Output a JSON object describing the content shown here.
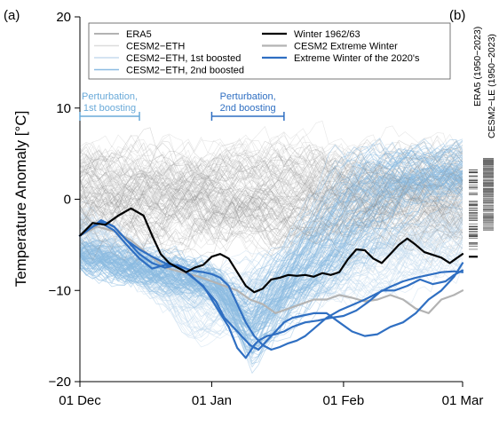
{
  "chart_data": {
    "type": "line",
    "panel_labels": [
      "(a)",
      "(b)"
    ],
    "ylabel": "Temperature Anomaly [°C]",
    "ylim": [
      -20,
      20
    ],
    "yticks": [
      -20,
      -10,
      0,
      10,
      20
    ],
    "x_range_days": [
      0,
      90
    ],
    "xticks": [
      {
        "day": 0,
        "label": "01 Dec"
      },
      {
        "day": 31,
        "label": "01 Jan"
      },
      {
        "day": 62,
        "label": "01 Feb"
      },
      {
        "day": 90,
        "label": "01 Mar"
      }
    ],
    "legend": [
      {
        "name": "ERA5",
        "color": "#9a9a9a"
      },
      {
        "name": "CESM2−ETH",
        "color": "#dddddd"
      },
      {
        "name": "CESM2−ETH, 1st boosted",
        "color": "#c6dcee"
      },
      {
        "name": "CESM2−ETH, 2nd boosted",
        "color": "#8cbbe2"
      },
      {
        "name": "Winter 1962/63",
        "color": "#000000"
      },
      {
        "name": "CESM2 Extreme Winter",
        "color": "#b3b3b3"
      },
      {
        "name": "Extreme Winter of the 2020's",
        "color": "#2f6fc2"
      }
    ],
    "annotations": [
      {
        "text_lines": [
          "Perturbation,",
          "1st boosting"
        ],
        "day_start": 0,
        "day_end": 14,
        "color": "#6aaad9"
      },
      {
        "text_lines": [
          "Perturbation,",
          "2nd boosting"
        ],
        "day_start": 31,
        "day_end": 48,
        "color": "#2f6fc2"
      }
    ],
    "side_panel_labels": [
      "ERA5 (1950−2023)",
      "CESM2−LE (1950−2023)"
    ],
    "side_panel_marker_value": -6.3,
    "series": [
      {
        "name": "Winter 1962/63",
        "color": "#000000",
        "x": [
          0,
          3,
          6,
          9,
          12,
          15,
          17,
          19,
          21,
          23,
          25,
          27,
          29,
          31,
          33,
          35,
          37,
          39,
          41,
          43,
          45,
          47,
          49,
          51,
          53,
          55,
          57,
          59,
          61,
          63,
          65,
          67,
          69,
          71,
          73,
          75,
          77,
          79,
          81,
          83,
          85,
          87,
          90
        ],
        "y": [
          -4,
          -2.6,
          -2.8,
          -1.8,
          -1,
          -1.8,
          -4,
          -6,
          -7,
          -7.5,
          -8,
          -7.5,
          -7.2,
          -6.3,
          -6,
          -6.5,
          -8,
          -9.5,
          -10.2,
          -9.8,
          -8.8,
          -8.6,
          -8.3,
          -8.4,
          -8.3,
          -8.5,
          -8.1,
          -8.3,
          -8,
          -6.6,
          -5.5,
          -5.6,
          -6.5,
          -7,
          -6,
          -5,
          -4.3,
          -5,
          -5.8,
          -6.1,
          -6.4,
          -7,
          -6
        ]
      },
      {
        "name": "CESM2 Extreme Winter",
        "color": "#b3b3b3",
        "x": [
          0,
          4,
          8,
          12,
          16,
          20,
          24,
          28,
          31,
          34,
          37,
          40,
          43,
          46,
          49,
          52,
          55,
          58,
          61,
          64,
          67,
          70,
          73,
          76,
          79,
          82,
          85,
          88,
          90
        ],
        "y": [
          -4,
          -3,
          -3.5,
          -4.5,
          -6,
          -7.5,
          -8,
          -8.5,
          -9,
          -9.5,
          -10,
          -11,
          -11.5,
          -12.5,
          -12,
          -11.5,
          -11,
          -11,
          -10.5,
          -10.8,
          -11.2,
          -11,
          -10.5,
          -11,
          -12,
          -12.5,
          -11,
          -10.5,
          -10
        ]
      },
      {
        "name": "Extreme Winter of the 2020's (member A)",
        "color": "#2f6fc2",
        "x": [
          0,
          3,
          5,
          8,
          11,
          14,
          17,
          20,
          23,
          26,
          29,
          31,
          33,
          35,
          37,
          39,
          41,
          42,
          44,
          46,
          48,
          50,
          53,
          56,
          59,
          62,
          65,
          68,
          71,
          74,
          77,
          80,
          83,
          86,
          88,
          90
        ],
        "y": [
          -4,
          -3,
          -2.4,
          -3,
          -4.5,
          -5.5,
          -6.3,
          -7,
          -7.3,
          -8.4,
          -9.5,
          -11,
          -12.5,
          -14,
          -16.3,
          -17.4,
          -16,
          -15.5,
          -15,
          -14.8,
          -14.5,
          -14,
          -13.5,
          -13.3,
          -13,
          -12.8,
          -12.2,
          -11.2,
          -10,
          -10,
          -9.5,
          -8.8,
          -9.3,
          -9,
          -8.3,
          -7.8
        ]
      },
      {
        "name": "Extreme Winter of the 2020's (member B)",
        "color": "#2f6fc2",
        "x": [
          0,
          3,
          5,
          8,
          11,
          14,
          17,
          20,
          23,
          26,
          29,
          32,
          34,
          36,
          38,
          40,
          42,
          44,
          46,
          48,
          50,
          52,
          55,
          58,
          61,
          64,
          67,
          70,
          73,
          76,
          79,
          82,
          85,
          88,
          90
        ],
        "y": [
          -4,
          -3,
          -2.6,
          -3.4,
          -5,
          -6.5,
          -7.6,
          -7.2,
          -7.4,
          -8.3,
          -9.6,
          -11.2,
          -13,
          -14,
          -15,
          -16,
          -16.5,
          -15.5,
          -14.5,
          -13.5,
          -13,
          -12.8,
          -12.5,
          -12.5,
          -13.5,
          -14.5,
          -15,
          -14.8,
          -14,
          -13.5,
          -12.5,
          -11,
          -10,
          -8.5,
          -7
        ]
      },
      {
        "name": "Extreme Winter of the 2020's (member C)",
        "color": "#2f6fc2",
        "x": [
          0,
          3,
          5,
          8,
          11,
          14,
          17,
          20,
          23,
          26,
          29,
          31,
          33,
          35,
          37,
          39,
          41,
          43,
          45,
          47,
          49,
          51,
          53,
          55,
          58,
          61,
          64,
          67,
          70,
          73,
          76,
          79,
          82,
          85,
          88,
          90
        ],
        "y": [
          -4,
          -3,
          -2.3,
          -3,
          -4.5,
          -6,
          -7,
          -7.5,
          -7.2,
          -7.8,
          -8,
          -8.2,
          -8.6,
          -9.5,
          -11.5,
          -13.5,
          -15,
          -16,
          -16.5,
          -16.2,
          -15.8,
          -15.5,
          -15,
          -14.2,
          -13,
          -12.2,
          -11.6,
          -11,
          -10.3,
          -9.6,
          -9,
          -8.6,
          -8.3,
          -8,
          -7.9,
          -8
        ]
      }
    ]
  }
}
